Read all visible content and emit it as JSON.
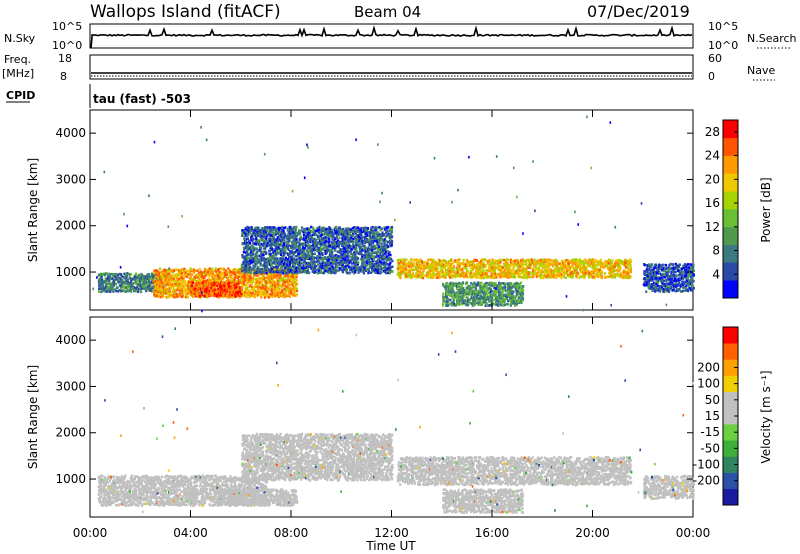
{
  "header": {
    "station": "Wallops Island (fitACF)",
    "beam": "Beam 04",
    "date": "07/Dec/2019"
  },
  "top_panels": {
    "nsky_label": "N.Sky",
    "nsky_ticks": [
      "10^5",
      "10^0"
    ],
    "nsearch_label": "N.Search",
    "nsearch_ticks": [
      "10^5",
      "10^0"
    ],
    "freq_label": "Freq.",
    "freq_unit": "[MHz]",
    "freq_ticks": [
      "18",
      "8"
    ],
    "nave_label": "Nave",
    "nave_ticks": [
      "60",
      "0"
    ],
    "cpid_label": "CPID",
    "cpid_value": "tau (fast) -503"
  },
  "colors": {
    "power_scale": [
      "#0000ff",
      "#2a4aa6",
      "#3a7a80",
      "#4f9a4c",
      "#6abf35",
      "#a6d400",
      "#f0c800",
      "#ff9900",
      "#ff5500",
      "#ff0000"
    ],
    "velocity_scale": [
      "#1a1aa0",
      "#2a50a8",
      "#2f8560",
      "#3fae3a",
      "#6ad040",
      "#c0c0c0",
      "#c0c0c0",
      "#f0d000",
      "#ffa000",
      "#ff6000",
      "#ff0000"
    ],
    "ground_scatter": "#c0c0c0"
  },
  "chart_data": [
    {
      "type": "heatmap",
      "name": "Power",
      "ylabel": "Slant Range [km]",
      "yticks": [
        "1000",
        "2000",
        "3000",
        "4000"
      ],
      "ylim": [
        180,
        4500
      ],
      "xlim_hours": [
        0,
        24
      ],
      "colorbar_label": "Power [dB]",
      "colorbar_ticks": [
        "4",
        "8",
        "12",
        "16",
        "20",
        "24",
        "28"
      ],
      "colorbar_range": [
        0,
        30
      ],
      "regions": [
        {
          "t_start": 0.3,
          "t_end": 3.0,
          "r_min": 600,
          "r_max": 1000,
          "power": 8
        },
        {
          "t_start": 2.5,
          "t_end": 8.2,
          "r_min": 480,
          "r_max": 1100,
          "power": 22
        },
        {
          "t_start": 4.0,
          "t_end": 6.0,
          "r_min": 500,
          "r_max": 800,
          "power": 26
        },
        {
          "t_start": 6.0,
          "t_end": 12.0,
          "r_min": 1000,
          "r_max": 2000,
          "power": 6
        },
        {
          "t_start": 12.2,
          "t_end": 21.5,
          "r_min": 900,
          "r_max": 1300,
          "power": 20
        },
        {
          "t_start": 14.0,
          "t_end": 17.2,
          "r_min": 300,
          "r_max": 800,
          "power": 10
        },
        {
          "t_start": 22.0,
          "t_end": 24.0,
          "r_min": 600,
          "r_max": 1200,
          "power": 5
        }
      ]
    },
    {
      "type": "heatmap",
      "name": "Velocity",
      "ylabel": "Slant Range [km]",
      "yticks": [
        "1000",
        "2000",
        "3000",
        "4000"
      ],
      "ylim": [
        180,
        4500
      ],
      "xlim_hours": [
        0,
        24
      ],
      "xticks": [
        "00:00",
        "04:00",
        "08:00",
        "12:00",
        "16:00",
        "20:00",
        "00:00"
      ],
      "xlabel": "Time UT",
      "colorbar_label": "Velocity [m s⁻¹]",
      "colorbar_ticks": [
        "-200",
        "-100",
        "-50",
        "-15",
        "15",
        "50",
        "100",
        "200"
      ],
      "colorbar_range": [
        -250,
        250
      ],
      "regions": [
        {
          "t_start": 0.3,
          "t_end": 7.0,
          "r_min": 450,
          "r_max": 1100,
          "velocity": 20
        },
        {
          "t_start": 5.0,
          "t_end": 8.2,
          "r_min": 450,
          "r_max": 800,
          "velocity": 0
        },
        {
          "t_start": 6.0,
          "t_end": 12.0,
          "r_min": 1000,
          "r_max": 2000,
          "velocity": 10
        },
        {
          "t_start": 12.2,
          "t_end": 21.5,
          "r_min": 900,
          "r_max": 1500,
          "velocity": 0
        },
        {
          "t_start": 14.0,
          "t_end": 17.2,
          "r_min": 300,
          "r_max": 800,
          "velocity": 25
        },
        {
          "t_start": 22.0,
          "t_end": 24.0,
          "r_min": 600,
          "r_max": 1100,
          "velocity": 0
        }
      ]
    }
  ]
}
